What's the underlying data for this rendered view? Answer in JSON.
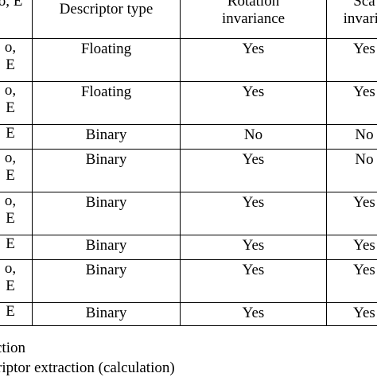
{
  "table": {
    "headers": {
      "name_fragment": [
        "o,",
        "E"
      ],
      "descriptor_type": "Descriptor type",
      "rotation_invariance": [
        "Rotation",
        "invariance"
      ],
      "scale_invariance": [
        "Sca",
        "invaria"
      ]
    },
    "rows": [
      {
        "name": [
          "o,",
          "E"
        ],
        "type": "Floating",
        "rotation": "Yes",
        "scale": "Yes"
      },
      {
        "name": [
          "o,",
          "E"
        ],
        "type": "Floating",
        "rotation": "Yes",
        "scale": "Yes"
      },
      {
        "name": [
          "E"
        ],
        "type": "Binary",
        "rotation": "No",
        "scale": "No"
      },
      {
        "name": [
          "o,",
          "E"
        ],
        "type": "Binary",
        "rotation": "Yes",
        "scale": "No"
      },
      {
        "name": [
          "o,",
          "E"
        ],
        "type": "Binary",
        "rotation": "Yes",
        "scale": "Yes"
      },
      {
        "name": [
          "E"
        ],
        "type": "Binary",
        "rotation": "Yes",
        "scale": "Yes"
      },
      {
        "name": [
          "o,",
          "E"
        ],
        "type": "Binary",
        "rotation": "Yes",
        "scale": "Yes"
      },
      {
        "name": [
          "E"
        ],
        "type": "Binary",
        "rotation": "Yes",
        "scale": "Yes"
      }
    ]
  },
  "footnotes": [
    "ction",
    "riptor extraction (calculation)"
  ]
}
